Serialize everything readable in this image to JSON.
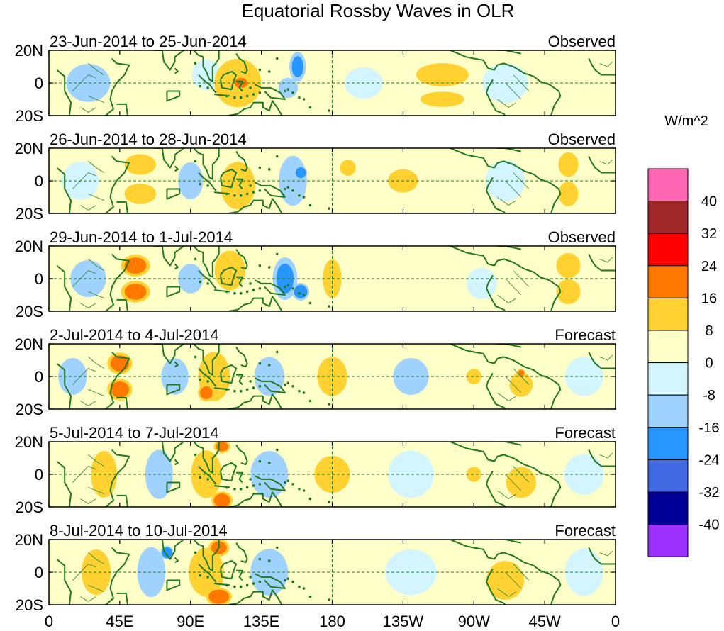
{
  "chart_data": {
    "type": "heatmap",
    "title": "Equatorial Rossby Waves in OLR",
    "units": "W/m^2",
    "x_ticks": [
      "0",
      "45E",
      "90E",
      "135E",
      "180",
      "135W",
      "90W",
      "45W",
      "0"
    ],
    "y_ticks": [
      "20N",
      "0",
      "20S"
    ],
    "xlim": [
      0,
      360
    ],
    "ylim": [
      -20,
      20
    ],
    "colorbar": {
      "labels": [
        "40",
        "32",
        "24",
        "16",
        "8",
        "0",
        "-8",
        "-16",
        "-24",
        "-32",
        "-40"
      ],
      "colors": [
        "#ff66b4",
        "#a02828",
        "#ff0000",
        "#ff7800",
        "#ffd232",
        "#ffffc8",
        "#d2f5ff",
        "#a0d2ff",
        "#2896ff",
        "#4169e1",
        "#000096",
        "#9b30ff"
      ]
    },
    "panels": [
      {
        "period": "23-Jun-2014 to 25-Jun-2014",
        "status": "Observed",
        "features": [
          {
            "lon": 120,
            "lat": 0,
            "sx": 12,
            "sy": 12,
            "v": 12
          },
          {
            "lon": 122,
            "lat": 0,
            "sx": 4,
            "sy": 3,
            "v": 20
          },
          {
            "lon": 158,
            "lat": 10,
            "sx": 4,
            "sy": 7,
            "v": -16
          },
          {
            "lon": 152,
            "lat": -3,
            "sx": 5,
            "sy": 5,
            "v": -12
          },
          {
            "lon": 100,
            "lat": 5,
            "sx": 8,
            "sy": 8,
            "v": -7
          },
          {
            "lon": 60,
            "lat": 2,
            "sx": 10,
            "sy": 8,
            "v": 5
          },
          {
            "lon": 25,
            "lat": 0,
            "sx": 12,
            "sy": 10,
            "v": -9
          },
          {
            "lon": 250,
            "lat": 5,
            "sx": 14,
            "sy": 6,
            "v": 10
          },
          {
            "lon": 250,
            "lat": -10,
            "sx": 12,
            "sy": 4,
            "v": 9
          },
          {
            "lon": 290,
            "lat": 0,
            "sx": 12,
            "sy": 10,
            "v": -6
          },
          {
            "lon": 200,
            "lat": 0,
            "sx": 10,
            "sy": 8,
            "v": -6
          }
        ]
      },
      {
        "period": "26-Jun-2014 to 28-Jun-2014",
        "status": "Observed",
        "features": [
          {
            "lon": 58,
            "lat": 10,
            "sx": 8,
            "sy": 5,
            "v": 13
          },
          {
            "lon": 58,
            "lat": -8,
            "sx": 8,
            "sy": 5,
            "v": 13
          },
          {
            "lon": 120,
            "lat": -3,
            "sx": 9,
            "sy": 12,
            "v": 11
          },
          {
            "lon": 155,
            "lat": 0,
            "sx": 7,
            "sy": 12,
            "v": -14
          },
          {
            "lon": 160,
            "lat": 5,
            "sx": 3,
            "sy": 3,
            "v": -22
          },
          {
            "lon": 90,
            "lat": 0,
            "sx": 7,
            "sy": 10,
            "v": -8
          },
          {
            "lon": 190,
            "lat": 8,
            "sx": 4,
            "sy": 4,
            "v": 12
          },
          {
            "lon": 225,
            "lat": 0,
            "sx": 8,
            "sy": 6,
            "v": 10
          },
          {
            "lon": 330,
            "lat": 10,
            "sx": 5,
            "sy": 6,
            "v": 13
          },
          {
            "lon": 330,
            "lat": -8,
            "sx": 5,
            "sy": 6,
            "v": 13
          },
          {
            "lon": 20,
            "lat": 0,
            "sx": 10,
            "sy": 10,
            "v": -7
          },
          {
            "lon": 290,
            "lat": 0,
            "sx": 10,
            "sy": 10,
            "v": -5
          }
        ]
      },
      {
        "period": "29-Jun-2014 to 1-Jul-2014",
        "status": "Observed",
        "features": [
          {
            "lon": 55,
            "lat": 8,
            "sx": 7,
            "sy": 5,
            "v": 18
          },
          {
            "lon": 55,
            "lat": -8,
            "sx": 7,
            "sy": 5,
            "v": 18
          },
          {
            "lon": 115,
            "lat": 5,
            "sx": 8,
            "sy": 10,
            "v": 11
          },
          {
            "lon": 150,
            "lat": 0,
            "sx": 6,
            "sy": 10,
            "v": -16
          },
          {
            "lon": 160,
            "lat": -8,
            "sx": 4,
            "sy": 4,
            "v": -20
          },
          {
            "lon": 180,
            "lat": 0,
            "sx": 5,
            "sy": 10,
            "v": 10
          },
          {
            "lon": 90,
            "lat": 0,
            "sx": 7,
            "sy": 8,
            "v": -8
          },
          {
            "lon": 330,
            "lat": 8,
            "sx": 6,
            "sy": 6,
            "v": 14
          },
          {
            "lon": 330,
            "lat": -8,
            "sx": 6,
            "sy": 6,
            "v": 14
          },
          {
            "lon": 25,
            "lat": 0,
            "sx": 10,
            "sy": 10,
            "v": -8
          },
          {
            "lon": 230,
            "lat": 0,
            "sx": 10,
            "sy": 6,
            "v": 6
          },
          {
            "lon": 275,
            "lat": -3,
            "sx": 8,
            "sy": 8,
            "v": -6
          }
        ]
      },
      {
        "period": "2-Jul-2014 to 4-Jul-2014",
        "status": "Forecast",
        "features": [
          {
            "lon": 45,
            "lat": 8,
            "sx": 6,
            "sy": 5,
            "v": 18
          },
          {
            "lon": 45,
            "lat": -8,
            "sx": 6,
            "sy": 5,
            "v": 18
          },
          {
            "lon": 80,
            "lat": 0,
            "sx": 7,
            "sy": 9,
            "v": -12
          },
          {
            "lon": 105,
            "lat": 0,
            "sx": 8,
            "sy": 12,
            "v": 13
          },
          {
            "lon": 100,
            "lat": -10,
            "sx": 4,
            "sy": 4,
            "v": 18
          },
          {
            "lon": 140,
            "lat": 0,
            "sx": 8,
            "sy": 10,
            "v": -10
          },
          {
            "lon": 180,
            "lat": 0,
            "sx": 8,
            "sy": 10,
            "v": 10
          },
          {
            "lon": 230,
            "lat": 0,
            "sx": 10,
            "sy": 10,
            "v": -8
          },
          {
            "lon": 270,
            "lat": 0,
            "sx": 4,
            "sy": 4,
            "v": 10
          },
          {
            "lon": 300,
            "lat": -5,
            "sx": 6,
            "sy": 6,
            "v": 12
          },
          {
            "lon": 300,
            "lat": 2,
            "sx": 2,
            "sy": 2,
            "v": 20
          },
          {
            "lon": 15,
            "lat": 0,
            "sx": 8,
            "sy": 10,
            "v": -8
          },
          {
            "lon": 340,
            "lat": 0,
            "sx": 10,
            "sy": 10,
            "v": -6
          }
        ]
      },
      {
        "period": "5-Jul-2014 to 7-Jul-2014",
        "status": "Forecast",
        "features": [
          {
            "lon": 35,
            "lat": 0,
            "sx": 7,
            "sy": 12,
            "v": 10
          },
          {
            "lon": 70,
            "lat": 0,
            "sx": 7,
            "sy": 12,
            "v": -13
          },
          {
            "lon": 100,
            "lat": 0,
            "sx": 8,
            "sy": 12,
            "v": 11
          },
          {
            "lon": 110,
            "lat": -16,
            "sx": 5,
            "sy": 4,
            "v": 20
          },
          {
            "lon": 110,
            "lat": 17,
            "sx": 4,
            "sy": 3,
            "v": 18
          },
          {
            "lon": 140,
            "lat": 0,
            "sx": 10,
            "sy": 12,
            "v": -10
          },
          {
            "lon": 180,
            "lat": 0,
            "sx": 10,
            "sy": 10,
            "v": 8
          },
          {
            "lon": 230,
            "lat": 0,
            "sx": 12,
            "sy": 12,
            "v": -6
          },
          {
            "lon": 270,
            "lat": 0,
            "sx": 4,
            "sy": 4,
            "v": 9
          },
          {
            "lon": 300,
            "lat": -5,
            "sx": 8,
            "sy": 8,
            "v": 10
          },
          {
            "lon": 340,
            "lat": 0,
            "sx": 10,
            "sy": 10,
            "v": -5
          }
        ]
      },
      {
        "period": "8-Jul-2014 to 10-Jul-2014",
        "status": "Forecast",
        "features": [
          {
            "lon": 30,
            "lat": 0,
            "sx": 8,
            "sy": 12,
            "v": 9
          },
          {
            "lon": 65,
            "lat": 0,
            "sx": 7,
            "sy": 12,
            "v": -14
          },
          {
            "lon": 75,
            "lat": 12,
            "sx": 3,
            "sy": 3,
            "v": -22
          },
          {
            "lon": 100,
            "lat": 0,
            "sx": 9,
            "sy": 12,
            "v": 12
          },
          {
            "lon": 108,
            "lat": -15,
            "sx": 6,
            "sy": 4,
            "v": 22
          },
          {
            "lon": 108,
            "lat": 15,
            "sx": 5,
            "sy": 4,
            "v": 18
          },
          {
            "lon": 140,
            "lat": 0,
            "sx": 10,
            "sy": 12,
            "v": -10
          },
          {
            "lon": 170,
            "lat": 0,
            "sx": 10,
            "sy": 10,
            "v": 7
          },
          {
            "lon": 230,
            "lat": 0,
            "sx": 14,
            "sy": 12,
            "v": -7
          },
          {
            "lon": 290,
            "lat": -5,
            "sx": 10,
            "sy": 10,
            "v": 10
          },
          {
            "lon": 340,
            "lat": 0,
            "sx": 10,
            "sy": 12,
            "v": -6
          }
        ]
      }
    ]
  }
}
